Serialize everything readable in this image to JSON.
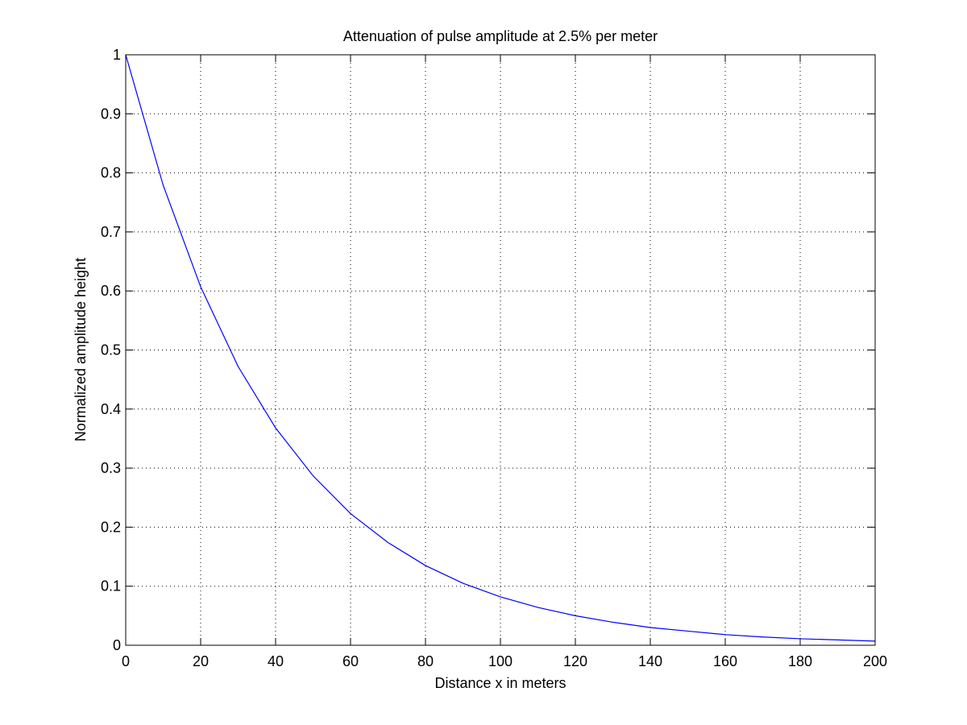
{
  "chart_data": {
    "type": "line",
    "title": "Attenuation of pulse amplitude at 2.5% per meter",
    "xlabel": "Distance x in meters",
    "ylabel": "Normalized amplitude height",
    "xlim": [
      0,
      200
    ],
    "ylim": [
      0,
      1
    ],
    "grid": true,
    "legend": "none",
    "x_ticks": [
      "0",
      "20",
      "40",
      "60",
      "80",
      "100",
      "120",
      "140",
      "160",
      "180",
      "200"
    ],
    "y_ticks": [
      "0",
      "0.1",
      "0.2",
      "0.3",
      "0.4",
      "0.5",
      "0.6",
      "0.7",
      "0.8",
      "0.9",
      "1"
    ],
    "series": [
      {
        "color": "#0000ff",
        "x": [
          0,
          10,
          20,
          30,
          40,
          50,
          60,
          70,
          80,
          90,
          100,
          110,
          120,
          130,
          140,
          150,
          160,
          170,
          180,
          190,
          200
        ],
        "y": [
          1.0,
          0.779,
          0.607,
          0.472,
          0.368,
          0.287,
          0.223,
          0.174,
          0.135,
          0.105,
          0.082,
          0.064,
          0.05,
          0.039,
          0.03,
          0.024,
          0.018,
          0.014,
          0.011,
          0.009,
          0.007
        ]
      }
    ]
  }
}
